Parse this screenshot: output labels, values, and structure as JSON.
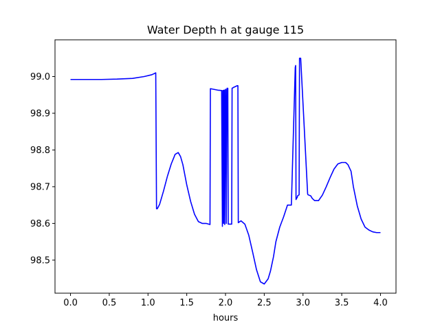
{
  "chart_data": {
    "type": "line",
    "title": "Water Depth h at gauge 115",
    "xlabel": "hours",
    "ylabel": "",
    "xlim": [
      -0.2,
      4.2
    ],
    "ylim": [
      98.41,
      99.1
    ],
    "grid": false,
    "x_ticks": [
      0.0,
      0.5,
      1.0,
      1.5,
      2.0,
      2.5,
      3.0,
      3.5,
      4.0
    ],
    "x_tick_labels": [
      "0.0",
      "0.5",
      "1.0",
      "1.5",
      "2.0",
      "2.5",
      "3.0",
      "3.5",
      "4.0"
    ],
    "y_ticks": [
      98.5,
      98.6,
      98.7,
      98.8,
      98.9,
      99.0
    ],
    "y_tick_labels": [
      "98.5",
      "98.6",
      "98.7",
      "98.8",
      "98.9",
      "99.0"
    ],
    "series": [
      {
        "color": "#0000ff",
        "x": [
          0.0,
          0.2,
          0.4,
          0.6,
          0.8,
          0.95,
          1.05,
          1.1,
          1.11,
          1.12,
          1.15,
          1.2,
          1.25,
          1.3,
          1.35,
          1.39,
          1.42,
          1.45,
          1.5,
          1.55,
          1.6,
          1.65,
          1.7,
          1.75,
          1.8,
          1.805,
          1.9,
          1.95,
          1.96,
          1.965,
          1.97,
          1.975,
          1.98,
          1.985,
          1.99,
          2.0,
          2.005,
          2.01,
          2.02,
          2.03,
          2.035,
          2.04,
          2.05,
          2.08,
          2.085,
          2.1,
          2.15,
          2.16,
          2.165,
          2.2,
          2.25,
          2.3,
          2.35,
          2.4,
          2.45,
          2.5,
          2.55,
          2.58,
          2.62,
          2.65,
          2.7,
          2.75,
          2.8,
          2.85,
          2.9,
          2.905,
          2.91,
          2.92,
          2.925,
          2.93,
          2.95,
          2.955,
          2.97,
          3.06,
          3.065,
          3.1,
          3.12,
          3.15,
          3.2,
          3.25,
          3.3,
          3.35,
          3.4,
          3.45,
          3.5,
          3.55,
          3.58,
          3.62,
          3.65,
          3.7,
          3.75,
          3.8,
          3.85,
          3.9,
          3.95,
          4.0
        ],
        "values": [
          98.992,
          98.992,
          98.992,
          98.993,
          98.995,
          99.0,
          99.005,
          99.01,
          98.64,
          98.64,
          98.652,
          98.688,
          98.728,
          98.762,
          98.788,
          98.793,
          98.782,
          98.76,
          98.705,
          98.66,
          98.625,
          98.605,
          98.6,
          98.6,
          98.597,
          98.967,
          98.963,
          98.962,
          98.592,
          98.962,
          98.962,
          98.6,
          98.963,
          98.963,
          98.597,
          98.965,
          98.965,
          98.6,
          98.968,
          98.968,
          98.598,
          98.598,
          98.598,
          98.598,
          98.968,
          98.97,
          98.975,
          98.975,
          98.602,
          98.607,
          98.598,
          98.568,
          98.522,
          98.474,
          98.441,
          98.435,
          98.449,
          98.47,
          98.51,
          98.55,
          98.59,
          98.618,
          98.65,
          98.65,
          99.025,
          99.03,
          98.665,
          98.67,
          98.67,
          98.675,
          98.678,
          99.05,
          99.05,
          98.68,
          98.678,
          98.675,
          98.668,
          98.662,
          98.662,
          98.677,
          98.7,
          98.725,
          98.748,
          98.762,
          98.766,
          98.766,
          98.76,
          98.742,
          98.7,
          98.648,
          98.612,
          98.59,
          98.582,
          98.577,
          98.575,
          98.575
        ]
      }
    ]
  }
}
